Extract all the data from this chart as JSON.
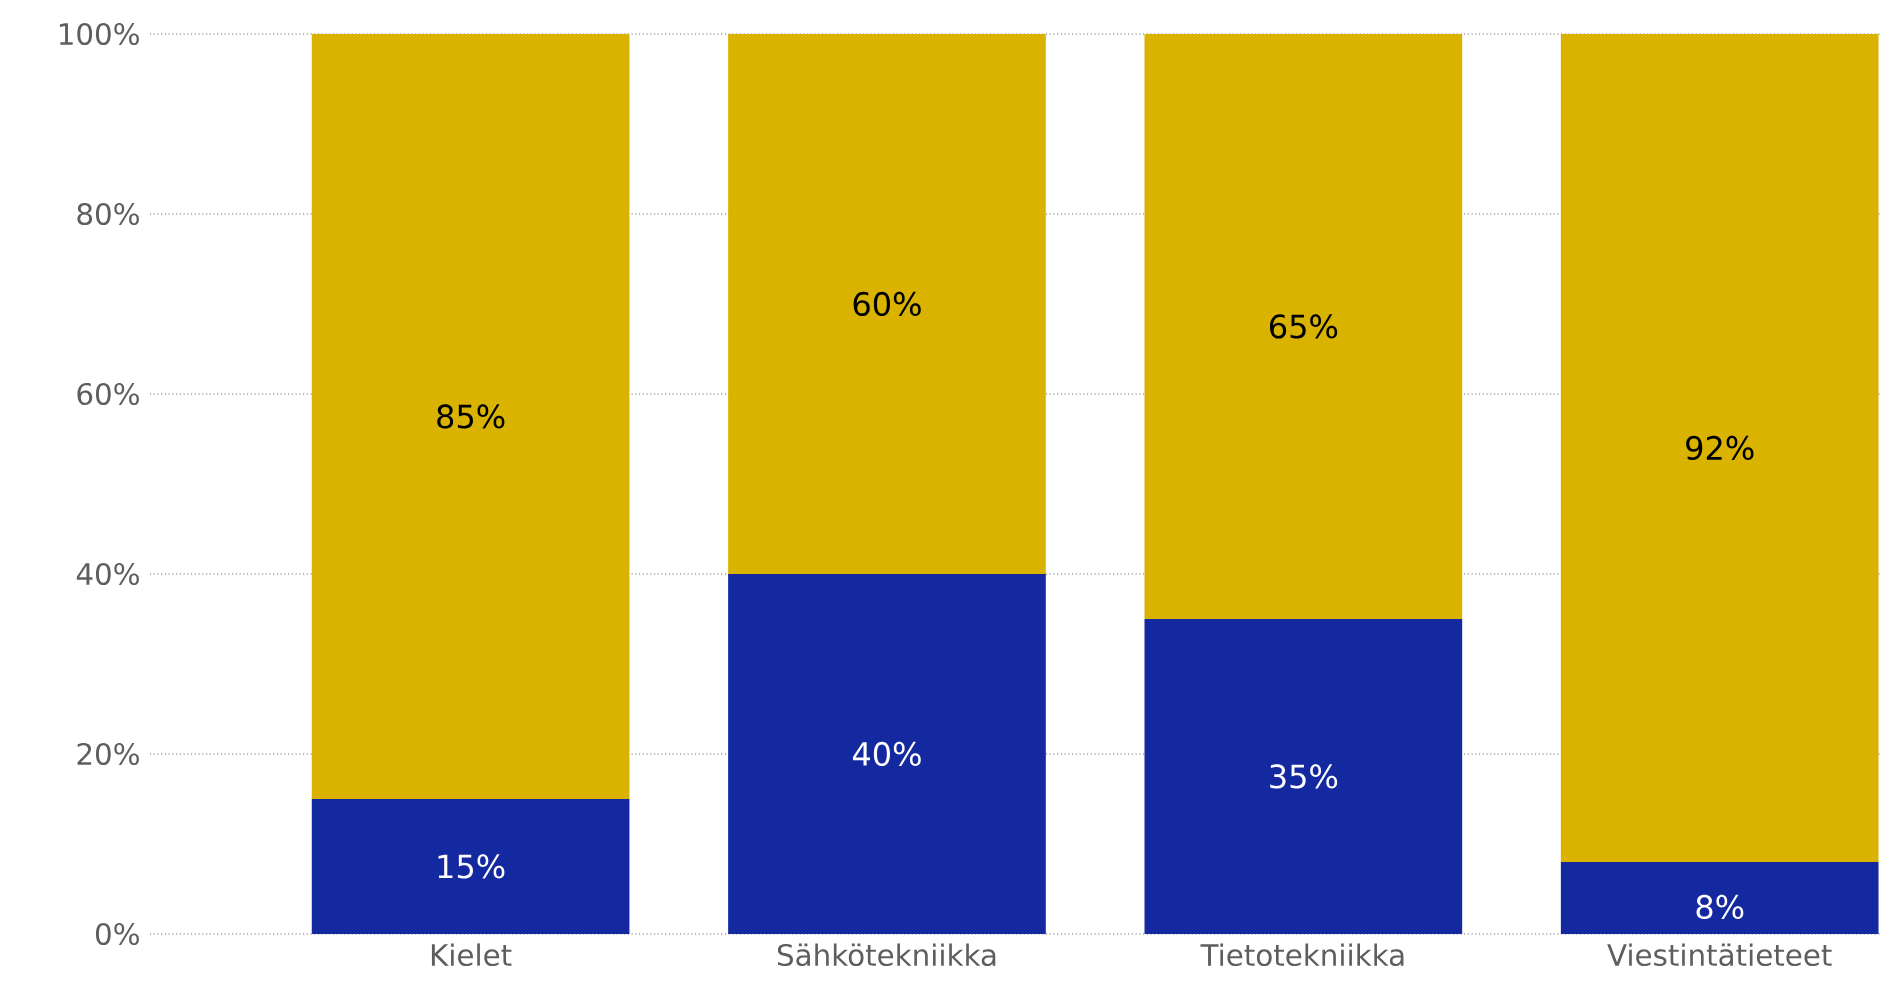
{
  "chart_data": {
    "type": "bar",
    "stacked": true,
    "categories": [
      "Kielet",
      "Sähkötekniikka",
      "Tietotekniikka",
      "Viestintätieteet"
    ],
    "series": [
      {
        "color": "#1428a0",
        "values": [
          15,
          40,
          35,
          8
        ],
        "value_labels": [
          "15%",
          "40%",
          "35%",
          "8%"
        ]
      },
      {
        "color": "#d9b300",
        "values": [
          85,
          60,
          65,
          92
        ],
        "value_labels": [
          "85%",
          "60%",
          "65%",
          "92%"
        ]
      }
    ],
    "ylim": [
      0,
      100
    ],
    "yticks": [
      {
        "value": 0,
        "label": "0%"
      },
      {
        "value": 20,
        "label": "20%"
      },
      {
        "value": 40,
        "label": "40%"
      },
      {
        "value": 60,
        "label": "60%"
      },
      {
        "value": 80,
        "label": "80%"
      },
      {
        "value": 100,
        "label": "100%"
      }
    ],
    "grid": "y"
  }
}
